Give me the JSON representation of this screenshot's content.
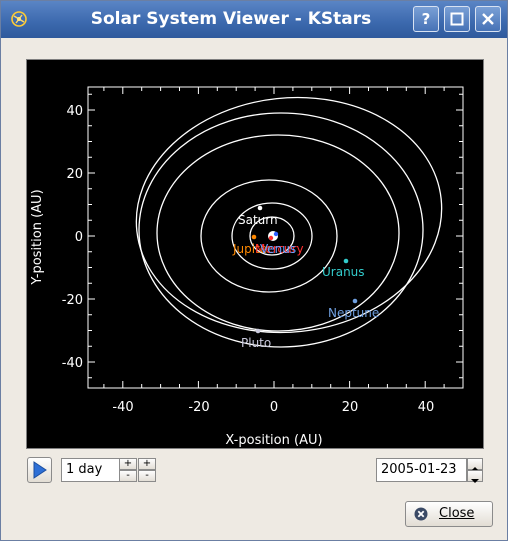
{
  "window": {
    "title": "Solar System Viewer - KStars",
    "help_label": "?"
  },
  "plot": {
    "xlabel": "X-position (AU)",
    "ylabel": "Y-position (AU)",
    "xlim": [
      -50,
      50
    ],
    "ylim": [
      -50,
      50
    ],
    "x_ticks": [
      "-40",
      "-20",
      "0",
      "20",
      "40"
    ],
    "y_ticks": [
      "40",
      "20",
      "0",
      "-20",
      "-40"
    ],
    "planets": [
      {
        "name": "Saturn",
        "color": "#ffffff"
      },
      {
        "name": "Jupiter",
        "color": "#ff8800"
      },
      {
        "name": "Mercury",
        "color": "#ff3030"
      },
      {
        "name": "Venus",
        "color": "#6fa0ff"
      },
      {
        "name": "Uranus",
        "color": "#33cccc"
      },
      {
        "name": "Neptune",
        "color": "#6f9fdf"
      },
      {
        "name": "Pluto",
        "color": "#c9c9dd"
      }
    ]
  },
  "controls": {
    "timestep_value": "1 day",
    "spin_up": "+",
    "spin_down": "-",
    "date_value": "2005-01-23",
    "close_label": "Close"
  }
}
